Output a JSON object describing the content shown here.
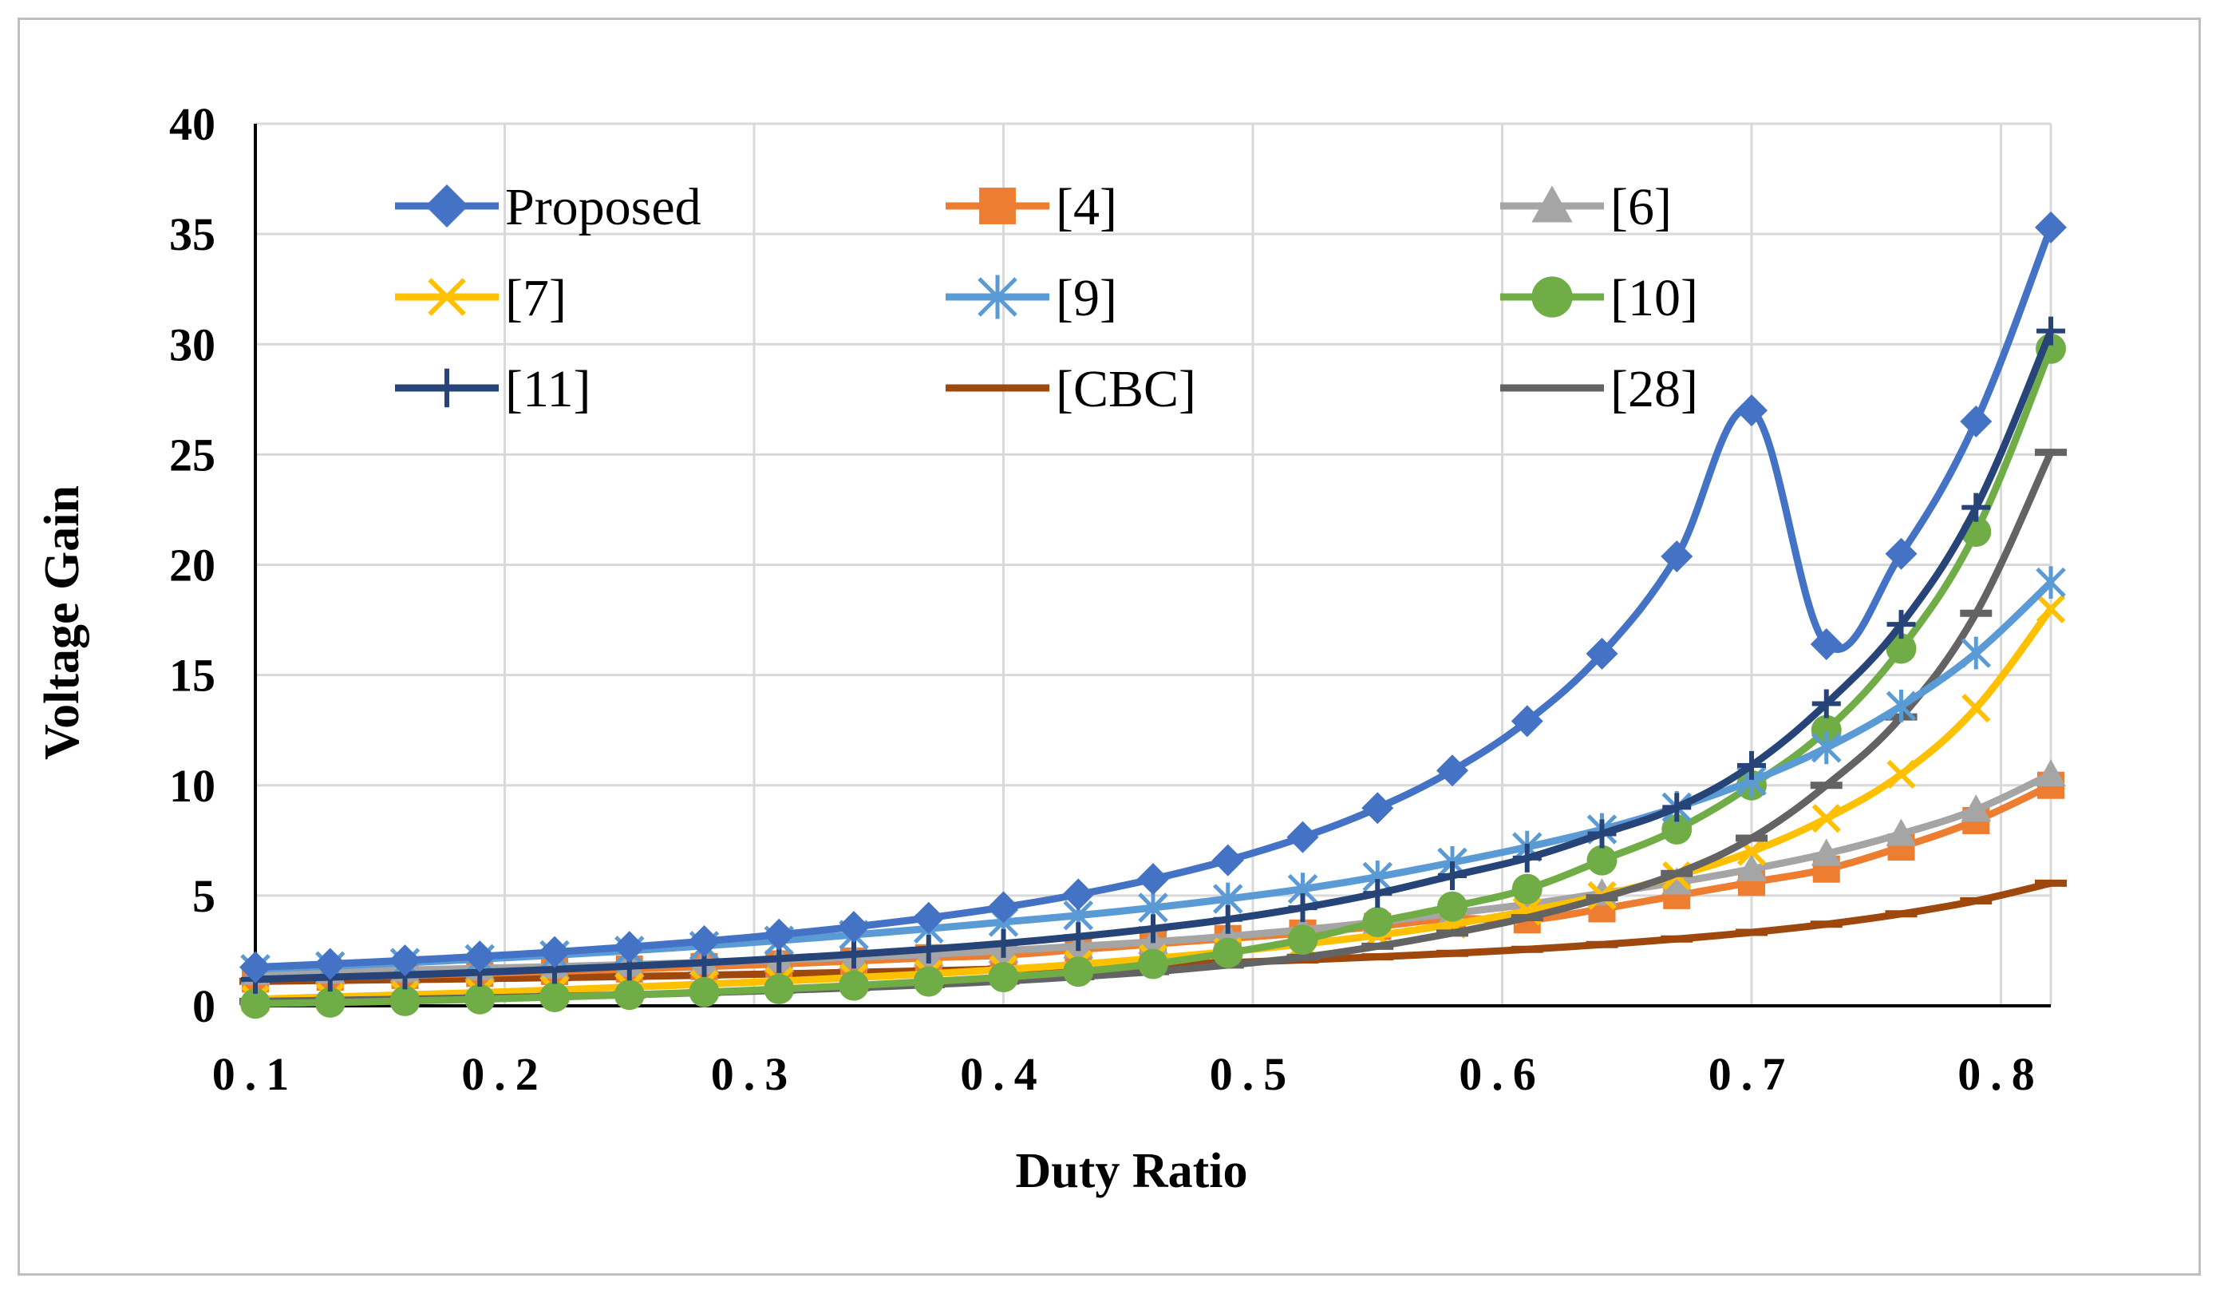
{
  "chart_data": {
    "type": "line",
    "title": "",
    "xlabel": "Duty Ratio",
    "ylabel": "Voltage Gain",
    "xlim": [
      0.1,
      0.82
    ],
    "ylim": [
      0,
      40
    ],
    "x_ticks": [
      "0.1",
      "0.2",
      "0.3",
      "0.4",
      "0.5",
      "0.6",
      "0.7",
      "0.8"
    ],
    "x_tick_values": [
      0.1,
      0.2,
      0.3,
      0.4,
      0.5,
      0.6,
      0.7,
      0.8
    ],
    "y_ticks": [
      "0",
      "5",
      "10",
      "15",
      "20",
      "25",
      "30",
      "35",
      "40"
    ],
    "y_tick_values": [
      0,
      5,
      10,
      15,
      20,
      25,
      30,
      35,
      40
    ],
    "grid": true,
    "legend_position": "top-inside",
    "x": [
      0.1,
      0.13,
      0.16,
      0.19,
      0.22,
      0.25,
      0.28,
      0.31,
      0.34,
      0.37,
      0.4,
      0.43,
      0.46,
      0.49,
      0.52,
      0.55,
      0.58,
      0.61,
      0.64,
      0.67,
      0.7,
      0.73,
      0.76,
      0.79,
      0.82
    ],
    "series": [
      {
        "name": "Proposed",
        "color": "#4472c4",
        "marker": "diamond",
        "values": [
          1.75,
          1.9,
          2.06,
          2.24,
          2.44,
          2.67,
          2.93,
          3.23,
          3.58,
          3.99,
          4.47,
          5.05,
          5.75,
          6.6,
          7.65,
          8.97,
          10.67,
          12.91,
          15.97,
          20.38,
          27.0,
          16.4,
          20.5,
          26.5,
          35.3
        ]
      },
      {
        "name": "[4]",
        "color": "#ed7d31",
        "marker": "square",
        "values": [
          1.22,
          1.3,
          1.38,
          1.47,
          1.56,
          1.67,
          1.78,
          1.9,
          2.03,
          2.18,
          2.3,
          2.55,
          2.8,
          3.05,
          3.3,
          3.6,
          3.95,
          3.9,
          4.4,
          5.0,
          5.6,
          6.2,
          7.2,
          8.4,
          10.0
        ]
      },
      {
        "name": "[6]",
        "color": "#a5a5a5",
        "marker": "triangle",
        "values": [
          1.5,
          1.55,
          1.62,
          1.7,
          1.78,
          1.87,
          1.97,
          2.08,
          2.2,
          2.34,
          2.5,
          2.7,
          2.9,
          3.15,
          3.45,
          3.8,
          4.2,
          4.6,
          5.1,
          5.6,
          6.2,
          6.9,
          7.8,
          8.9,
          10.5
        ]
      },
      {
        "name": "[7]",
        "color": "#ffc000",
        "marker": "x",
        "values": [
          0.3,
          0.4,
          0.5,
          0.6,
          0.72,
          0.85,
          0.98,
          1.12,
          1.28,
          1.45,
          1.65,
          1.88,
          2.15,
          2.45,
          2.8,
          3.2,
          3.7,
          4.3,
          5.0,
          5.9,
          7.0,
          8.5,
          10.5,
          13.5,
          18.0
        ]
      },
      {
        "name": "[9]",
        "color": "#5b9bd5",
        "marker": "asterisk",
        "values": [
          1.67,
          1.8,
          1.95,
          2.12,
          2.3,
          2.5,
          2.72,
          2.96,
          3.22,
          3.5,
          3.8,
          4.1,
          4.45,
          4.85,
          5.3,
          5.85,
          6.5,
          7.2,
          8.0,
          9.0,
          10.2,
          11.7,
          13.6,
          16.0,
          19.2
        ]
      },
      {
        "name": "[10]",
        "color": "#70ad47",
        "marker": "circle",
        "values": [
          0.1,
          0.15,
          0.22,
          0.3,
          0.4,
          0.5,
          0.62,
          0.76,
          0.92,
          1.1,
          1.3,
          1.55,
          1.9,
          2.4,
          3.0,
          3.8,
          4.5,
          5.3,
          6.6,
          8.0,
          10.0,
          12.5,
          16.2,
          21.5,
          29.8
        ]
      },
      {
        "name": "[11]",
        "color": "#264478",
        "marker": "plus",
        "values": [
          1.2,
          1.3,
          1.4,
          1.52,
          1.65,
          1.8,
          1.96,
          2.14,
          2.34,
          2.57,
          2.83,
          3.14,
          3.5,
          3.92,
          4.45,
          5.1,
          5.9,
          6.7,
          7.8,
          9.0,
          10.9,
          13.7,
          17.3,
          22.6,
          30.6
        ]
      },
      {
        "name": "[CBC]",
        "color": "#9e480e",
        "marker": "dash",
        "values": [
          1.11,
          1.15,
          1.19,
          1.23,
          1.28,
          1.33,
          1.39,
          1.45,
          1.52,
          1.59,
          1.67,
          1.75,
          1.85,
          1.96,
          2.08,
          2.22,
          2.38,
          2.56,
          2.78,
          3.03,
          3.33,
          3.7,
          4.17,
          4.76,
          5.56
        ]
      },
      {
        "name": "[28]",
        "color": "#636363",
        "marker": "dash",
        "values": [
          0.2,
          0.25,
          0.3,
          0.36,
          0.43,
          0.5,
          0.6,
          0.7,
          0.82,
          0.96,
          1.12,
          1.32,
          1.55,
          1.85,
          2.2,
          2.7,
          3.3,
          4.0,
          4.9,
          6.0,
          7.6,
          10.0,
          13.1,
          17.8,
          25.1
        ]
      }
    ]
  }
}
